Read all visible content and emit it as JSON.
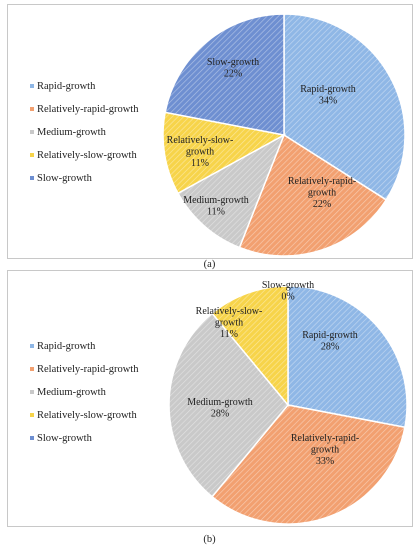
{
  "colors": {
    "rapid": "#8fb7e6",
    "relatively_rapid": "#f2a070",
    "medium": "#c9c9c9",
    "relatively_slow": "#f7d44a",
    "slow": "#6e8fd1"
  },
  "chart_data": [
    {
      "type": "pie",
      "panel": "a",
      "caption": "(a)",
      "legend": [
        "Rapid-growth",
        "Relatively-rapid-growth",
        "Medium-growth",
        "Relatively-slow-growth",
        "Slow-growth"
      ],
      "slices": [
        {
          "name": "Rapid-growth",
          "label_lines": [
            "Rapid-growth",
            "34%"
          ],
          "value": 34,
          "color_key": "rapid"
        },
        {
          "name": "Relatively-rapid-growth",
          "label_lines": [
            "Relatively-rapid-",
            "growth",
            "22%"
          ],
          "value": 22,
          "color_key": "relatively_rapid"
        },
        {
          "name": "Medium-growth",
          "label_lines": [
            "Medium-growth",
            "11%"
          ],
          "value": 11,
          "color_key": "medium"
        },
        {
          "name": "Relatively-slow-growth",
          "label_lines": [
            "Relatively-slow-",
            "growth",
            "11%"
          ],
          "value": 11,
          "color_key": "relatively_slow"
        },
        {
          "name": "Slow-growth",
          "label_lines": [
            "Slow-growth",
            "22%"
          ],
          "value": 22,
          "color_key": "slow"
        }
      ]
    },
    {
      "type": "pie",
      "panel": "b",
      "caption": "(b)",
      "legend": [
        "Rapid-growth",
        "Relatively-rapid-growth",
        "Medium-growth",
        "Relatively-slow-growth",
        "Slow-growth"
      ],
      "slices": [
        {
          "name": "Rapid-growth",
          "label_lines": [
            "Rapid-growth",
            "28%"
          ],
          "value": 28,
          "color_key": "rapid"
        },
        {
          "name": "Relatively-rapid-growth",
          "label_lines": [
            "Relatively-rapid-",
            "growth",
            "33%"
          ],
          "value": 33,
          "color_key": "relatively_rapid"
        },
        {
          "name": "Medium-growth",
          "label_lines": [
            "Medium-growth",
            "28%"
          ],
          "value": 28,
          "color_key": "medium"
        },
        {
          "name": "Relatively-slow-growth",
          "label_lines": [
            "Relatively-slow-",
            "growth",
            "11%"
          ],
          "value": 11,
          "color_key": "relatively_slow"
        },
        {
          "name": "Slow-growth",
          "label_lines": [
            "Slow-growth",
            "0%"
          ],
          "value": 0,
          "color_key": "slow"
        }
      ]
    }
  ]
}
